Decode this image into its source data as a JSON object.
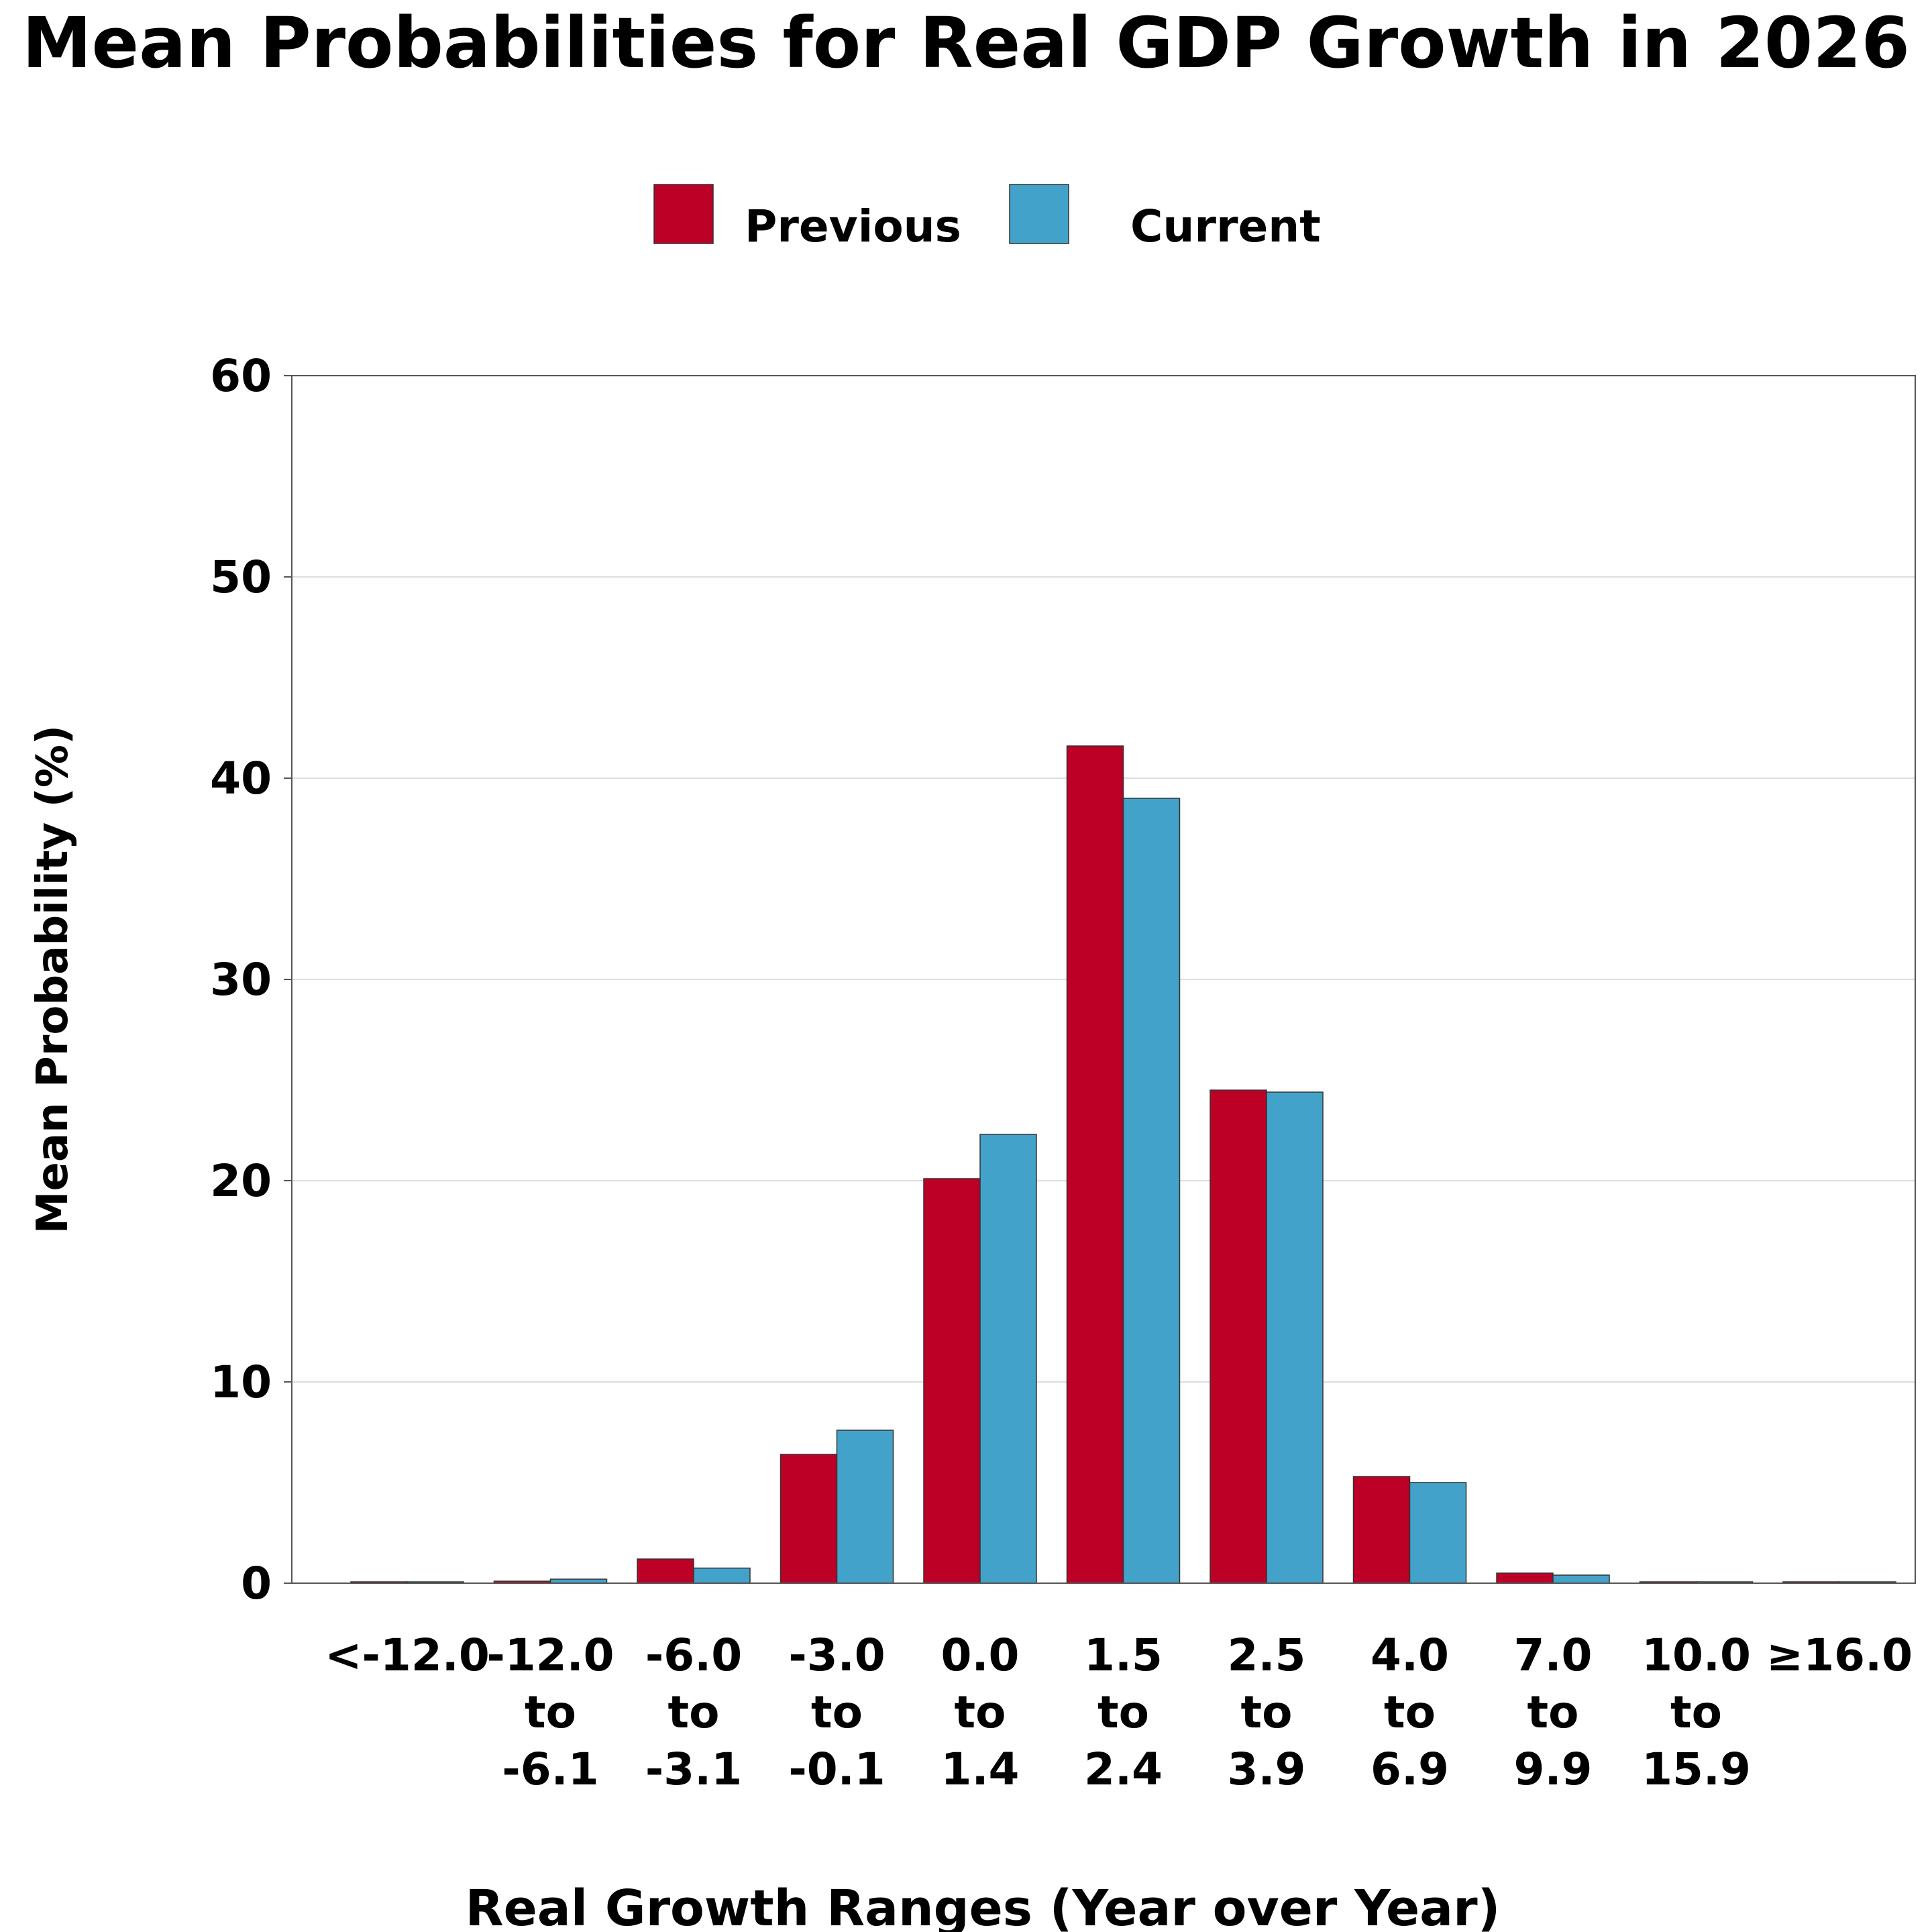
{
  "chart_data": {
    "type": "bar",
    "title": "Mean Probabilities for Real GDP Growth in 2026",
    "xlabel": "Real Growth Ranges (Year over Year)",
    "ylabel": "Mean Probability (%)",
    "ylim": [
      0,
      60
    ],
    "yticks": [
      "0",
      "10",
      "20",
      "30",
      "40",
      "50",
      "60"
    ],
    "grid": "horizontal",
    "legend_position": "top-center",
    "categories": [
      [
        "<-12.0"
      ],
      [
        "-12.0",
        "to",
        "-6.1"
      ],
      [
        "-6.0",
        "to",
        "-3.1"
      ],
      [
        "-3.0",
        "to",
        "-0.1"
      ],
      [
        "0.0",
        "to",
        "1.4"
      ],
      [
        "1.5",
        "to",
        "2.4"
      ],
      [
        "2.5",
        "to",
        "3.9"
      ],
      [
        "4.0",
        "to",
        "6.9"
      ],
      [
        "7.0",
        "to",
        "9.9"
      ],
      [
        "10.0",
        "to",
        "15.9"
      ],
      [
        "≥16.0"
      ]
    ],
    "series": [
      {
        "name": "Previous",
        "color": "#bd0026",
        "values": [
          0.0,
          0.1,
          1.2,
          6.4,
          20.1,
          41.6,
          24.5,
          5.3,
          0.5,
          0.0,
          0.0
        ]
      },
      {
        "name": "Current",
        "color": "#43a2ca",
        "values": [
          0.05,
          0.2,
          0.75,
          7.6,
          22.3,
          39.0,
          24.4,
          5.0,
          0.4,
          0.05,
          0.05
        ]
      }
    ]
  }
}
